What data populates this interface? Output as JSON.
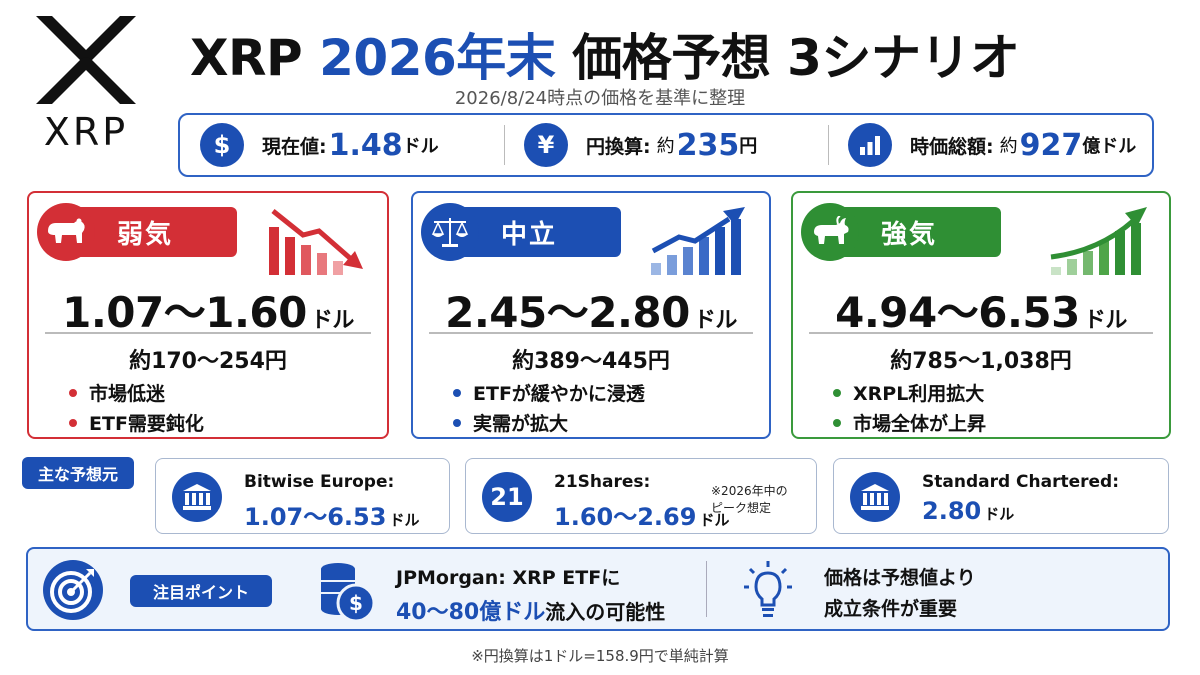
{
  "header": {
    "logo_text": "XRP",
    "title_part1": "XRP",
    "title_part2": "2026年末",
    "title_part3": "価格予想 3シナリオ",
    "subtitle": "2026/8/24時点の価格を基準に整理"
  },
  "info_bar": [
    {
      "icon": "dollar-icon",
      "glyph": "$",
      "label": "現在値:",
      "prefix": "",
      "value": "1.48",
      "unit": "ドル"
    },
    {
      "icon": "yen-icon",
      "glyph": "¥",
      "label": "円換算:",
      "prefix": "約",
      "value": "235",
      "unit": "円"
    },
    {
      "icon": "bar-chart-icon",
      "glyph": "",
      "label": "時価総額:",
      "prefix": "約",
      "value": "927",
      "unit": "億ドル"
    }
  ],
  "scenarios": [
    {
      "key": "bear",
      "icon": "bear-icon",
      "label": "弱気",
      "range": "1.07〜1.60",
      "unit": "ドル",
      "yen": "約170〜254円",
      "bullets": [
        "市場低迷",
        "ETF需要鈍化"
      ],
      "color": "#d32f36"
    },
    {
      "key": "neutral",
      "icon": "scale-icon",
      "label": "中立",
      "range": "2.45〜2.80",
      "unit": "ドル",
      "yen": "約389〜445円",
      "bullets": [
        "ETFが緩やかに浸透",
        "実需が拡大"
      ],
      "color": "#1c4fb3"
    },
    {
      "key": "bull",
      "icon": "bull-icon",
      "label": "強気",
      "range": "4.94〜6.53",
      "unit": "ドル",
      "yen": "約785〜1,038円",
      "bullets": [
        "XRPL利用拡大",
        "市場全体が上昇"
      ],
      "color": "#2f8f34"
    }
  ],
  "forecasters": {
    "tag": "主な予想元",
    "items": [
      {
        "icon": "bank-icon",
        "glyph": "",
        "name": "Bitwise Europe:",
        "value": "1.07〜6.53",
        "unit": "ドル",
        "note": ""
      },
      {
        "icon": "21shares-icon",
        "glyph": "21",
        "name": "21Shares:",
        "value": "1.60〜2.69",
        "unit": "ドル",
        "note": "※2026年中の\nピーク想定"
      },
      {
        "icon": "bank-icon",
        "glyph": "",
        "name": "Standard Chartered:",
        "value": "2.80",
        "unit": "ドル",
        "note": ""
      }
    ]
  },
  "attention": {
    "tag": "注目ポイント",
    "line1": "JPMorgan: XRP ETFに",
    "line2_highlight": "40〜80億ドル",
    "line2_rest": "流入の可能性",
    "right_line1": "価格は予想値より",
    "right_line2": "成立条件が重要"
  },
  "footnote": "※円換算は1ドル=158.9円で単純計算"
}
